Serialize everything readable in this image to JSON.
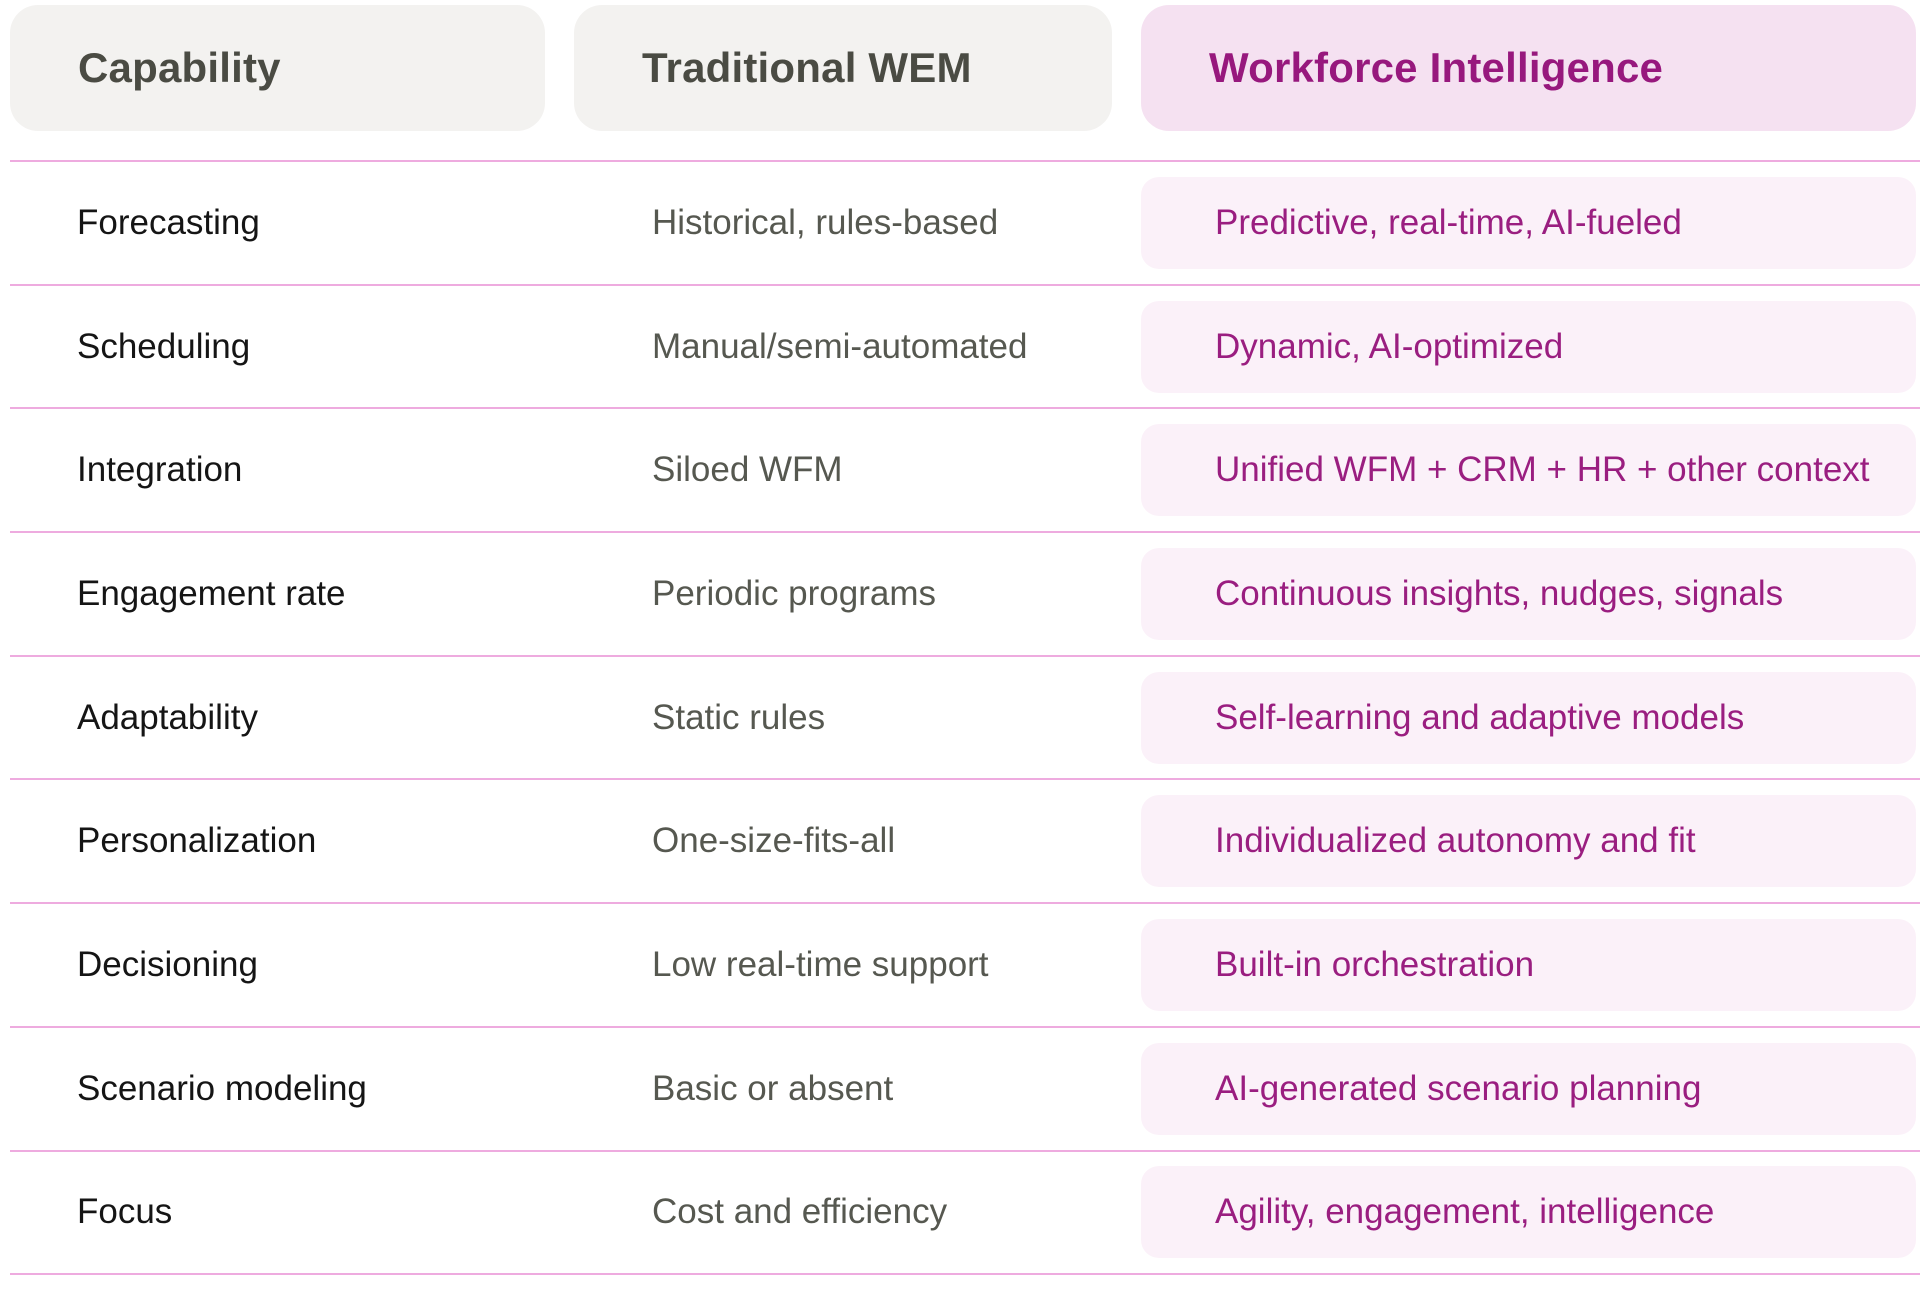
{
  "table": {
    "headers": [
      {
        "label": "Capability"
      },
      {
        "label": "Traditional WEM"
      },
      {
        "label": "Workforce Intelligence"
      }
    ],
    "rows": [
      {
        "capability": "Forecasting",
        "traditional": "Historical, rules-based",
        "intelligence": "Predictive, real-time, AI-fueled"
      },
      {
        "capability": "Scheduling",
        "traditional": "Manual/semi-automated",
        "intelligence": "Dynamic, AI-optimized"
      },
      {
        "capability": "Integration",
        "traditional": "Siloed WFM",
        "intelligence": "Unified WFM + CRM + HR + other context"
      },
      {
        "capability": "Engagement rate",
        "traditional": "Periodic programs",
        "intelligence": "Continuous insights, nudges, signals"
      },
      {
        "capability": "Adaptability",
        "traditional": "Static rules",
        "intelligence": "Self-learning and adaptive models"
      },
      {
        "capability": "Personalization",
        "traditional": "One-size-fits-all",
        "intelligence": "Individualized autonomy and fit"
      },
      {
        "capability": "Decisioning",
        "traditional": "Low real-time support",
        "intelligence": "Built-in orchestration"
      },
      {
        "capability": "Scenario modeling",
        "traditional": "Basic or absent",
        "intelligence": "AI-generated scenario planning"
      },
      {
        "capability": "Focus",
        "traditional": "Cost and efficiency",
        "intelligence": "Agility, engagement, intelligence"
      }
    ]
  },
  "colors": {
    "header_neutral_bg": "#f3f2f0",
    "header_neutral_text": "#4a4b43",
    "header_highlight_bg": "#f5e1f1",
    "header_highlight_text": "#97187d",
    "row_highlight_bg": "#fbf1f9",
    "row_highlight_text": "#9a1e80",
    "capability_text": "#151515",
    "traditional_text": "#565850",
    "divider": "#eeabdf",
    "page_bg": "#ffffff"
  },
  "chart_data": {
    "type": "table",
    "title": "Traditional WEM vs Workforce Intelligence capability comparison",
    "columns": [
      "Capability",
      "Traditional WEM",
      "Workforce Intelligence"
    ],
    "rows": [
      [
        "Forecasting",
        "Historical, rules-based",
        "Predictive, real-time, AI-fueled"
      ],
      [
        "Scheduling",
        "Manual/semi-automated",
        "Dynamic, AI-optimized"
      ],
      [
        "Integration",
        "Siloed WFM",
        "Unified WFM + CRM + HR + other context"
      ],
      [
        "Engagement rate",
        "Periodic programs",
        "Continuous insights, nudges, signals"
      ],
      [
        "Adaptability",
        "Static rules",
        "Self-learning and adaptive models"
      ],
      [
        "Personalization",
        "One-size-fits-all",
        "Individualized autonomy and fit"
      ],
      [
        "Decisioning",
        "Low real-time support",
        "Built-in orchestration"
      ],
      [
        "Scenario modeling",
        "Basic or absent",
        "AI-generated scenario planning"
      ],
      [
        "Focus",
        "Cost and efficiency",
        "Agility, engagement, intelligence"
      ]
    ],
    "layout_hints": {
      "highlight_column": "Workforce Intelligence",
      "grid": "horizontal pink dividers between rows",
      "legend": "none"
    }
  }
}
